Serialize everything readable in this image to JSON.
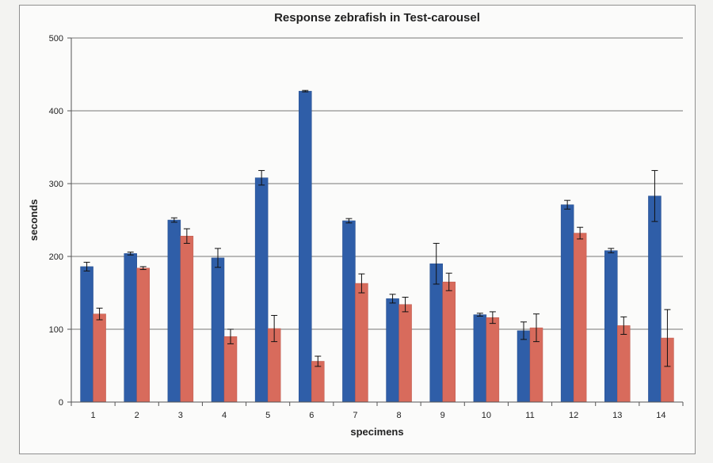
{
  "chart_data": {
    "type": "bar",
    "title": "Response zebrafish in Test-carousel",
    "xlabel": "specimens",
    "ylabel": "seconds",
    "ylim": [
      0,
      500
    ],
    "yticks": [
      0,
      100,
      200,
      300,
      400,
      500
    ],
    "grid": true,
    "categories": [
      "1",
      "2",
      "3",
      "4",
      "5",
      "6",
      "7",
      "8",
      "9",
      "10",
      "11",
      "12",
      "13",
      "14"
    ],
    "series": [
      {
        "color": "#2f5ea8",
        "values": [
          186,
          204,
          250,
          198,
          308,
          427,
          249,
          142,
          190,
          120,
          98,
          271,
          208,
          283
        ],
        "errors": [
          6,
          2,
          3,
          13,
          10,
          1,
          3,
          6,
          28,
          2,
          12,
          6,
          3,
          35
        ]
      },
      {
        "color": "#d86b5c",
        "values": [
          121,
          184,
          228,
          90,
          101,
          56,
          163,
          134,
          165,
          116,
          102,
          232,
          105,
          88
        ],
        "errors": [
          8,
          2,
          10,
          10,
          18,
          7,
          13,
          10,
          12,
          8,
          19,
          8,
          12,
          39
        ]
      }
    ]
  }
}
